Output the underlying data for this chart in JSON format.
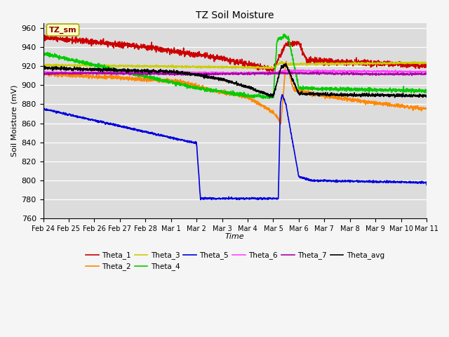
{
  "title": "TZ Soil Moisture",
  "xlabel": "Time",
  "ylabel": "Soil Moisture (mV)",
  "ylim": [
    760,
    965
  ],
  "yticks": [
    760,
    780,
    800,
    820,
    840,
    860,
    880,
    900,
    920,
    940,
    960
  ],
  "bg_color": "#dcdcdc",
  "fig_color": "#f5f5f5",
  "legend_label": "TZ_sm",
  "xtick_labels": [
    "Feb 24",
    "Feb 25",
    "Feb 26",
    "Feb 27",
    "Feb 28",
    "Mar 1",
    "Mar 2",
    "Mar 3",
    "Mar 4",
    "Mar 5",
    "Mar 6",
    "Mar 7",
    "Mar 8",
    "Mar 9",
    "Mar 10",
    "Mar 11"
  ],
  "colors": {
    "Theta_1": "#cc0000",
    "Theta_2": "#ff8800",
    "Theta_3": "#cccc00",
    "Theta_4": "#00cc00",
    "Theta_5": "#0000dd",
    "Theta_6": "#ff44ff",
    "Theta_7": "#aa00aa",
    "Theta_avg": "#000000"
  }
}
